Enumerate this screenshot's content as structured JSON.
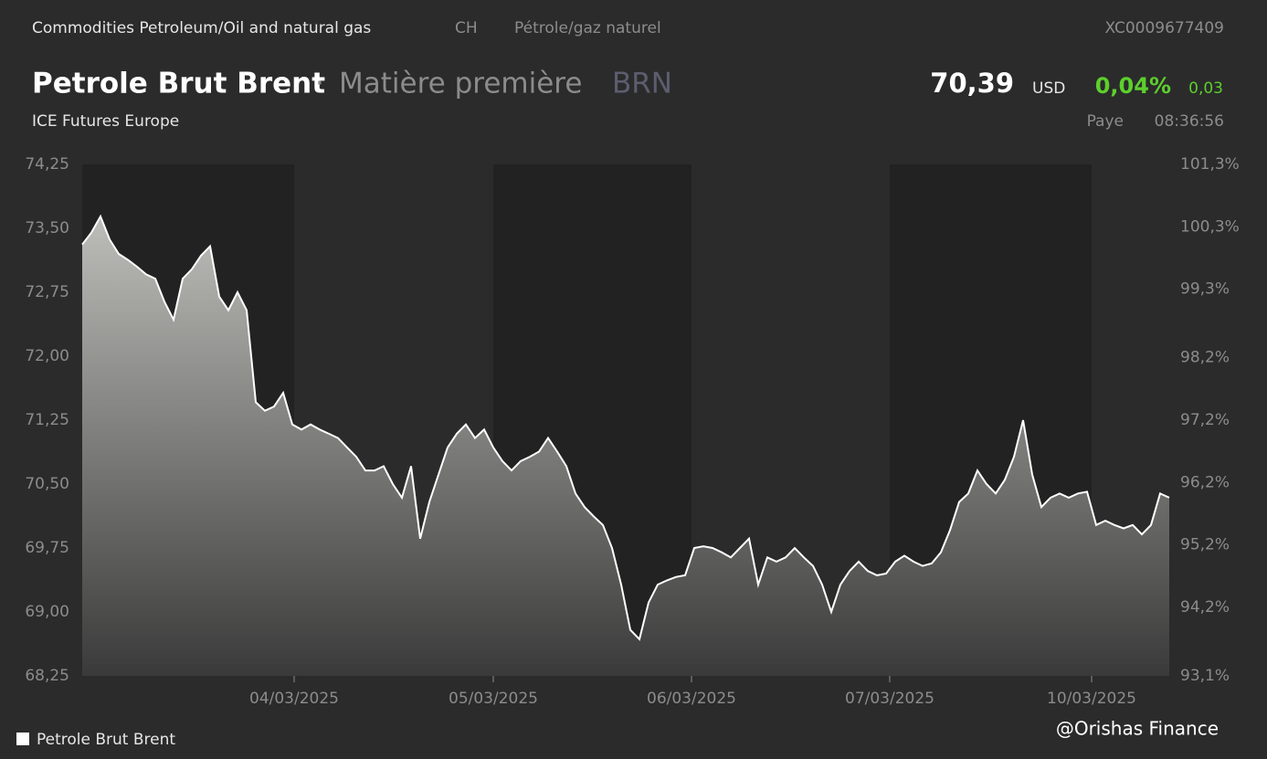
{
  "header": {
    "breadcrumb": "Commodities Petroleum/Oil and natural gas",
    "country": "CH",
    "category_fr": "Pétrole/gaz naturel",
    "isin": "XC0009677409",
    "name": "Petrole Brut Brent",
    "kind": "Matière première",
    "symbol": "BRN",
    "exchange": "ICE Futures Europe",
    "price": "70,39",
    "currency": "USD",
    "change_pct": "0,04%",
    "change_abs": "0,03",
    "status": "Paye",
    "time": "08:36:56",
    "watermark": "@Orishas Finance"
  },
  "chart_data": {
    "type": "area",
    "series": [
      {
        "name": "Petrole Brut Brent",
        "color": "#ffffff",
        "values": [
          73.31,
          73.45,
          73.64,
          73.37,
          73.2,
          73.13,
          73.05,
          72.96,
          72.91,
          72.64,
          72.43,
          72.91,
          73.02,
          73.18,
          73.29,
          72.7,
          72.54,
          72.75,
          72.54,
          71.46,
          71.36,
          71.41,
          71.57,
          71.2,
          71.14,
          71.2,
          71.14,
          71.09,
          71.04,
          70.93,
          70.82,
          70.66,
          70.66,
          70.71,
          70.5,
          70.34,
          70.71,
          69.86,
          70.29,
          70.61,
          70.93,
          71.09,
          71.2,
          71.04,
          71.14,
          70.93,
          70.77,
          70.66,
          70.77,
          70.82,
          70.88,
          71.04,
          70.88,
          70.71,
          70.39,
          70.23,
          70.12,
          70.02,
          69.75,
          69.32,
          68.79,
          68.68,
          69.11,
          69.32,
          69.37,
          69.41,
          69.43,
          69.75,
          69.77,
          69.75,
          69.7,
          69.64,
          69.75,
          69.86,
          69.32,
          69.64,
          69.59,
          69.64,
          69.75,
          69.64,
          69.54,
          69.32,
          69.0,
          69.32,
          69.48,
          69.59,
          69.48,
          69.43,
          69.45,
          69.59,
          69.66,
          69.59,
          69.54,
          69.57,
          69.7,
          69.96,
          70.29,
          70.39,
          70.66,
          70.5,
          70.39,
          70.55,
          70.82,
          71.25,
          70.61,
          70.23,
          70.34,
          70.39,
          70.34,
          70.39,
          70.41,
          70.02,
          70.07,
          70.02,
          69.98,
          70.02,
          69.91,
          70.02,
          70.39,
          70.34
        ]
      }
    ],
    "xlim": [
      0,
      119
    ],
    "xticks": [
      {
        "value": 23.2,
        "label": "04/03/2025"
      },
      {
        "value": 45,
        "label": "05/03/2025"
      },
      {
        "value": 66.7,
        "label": "06/03/2025"
      },
      {
        "value": 88.4,
        "label": "07/03/2025"
      },
      {
        "value": 110.5,
        "label": "10/03/2025"
      }
    ],
    "ylim": [
      68.25,
      74.25
    ],
    "yticks": [
      {
        "value": 68.25,
        "label": "68,25"
      },
      {
        "value": 69,
        "label": "69,00"
      },
      {
        "value": 69.75,
        "label": "69,75"
      },
      {
        "value": 70.5,
        "label": "70,50"
      },
      {
        "value": 71.25,
        "label": "71,25"
      },
      {
        "value": 72,
        "label": "72,00"
      },
      {
        "value": 72.75,
        "label": "72,75"
      },
      {
        "value": 73.5,
        "label": "73,50"
      },
      {
        "value": 74.25,
        "label": "74,25"
      }
    ],
    "y2lim": [
      93.1,
      101.3
    ],
    "y2ticks": [
      {
        "value": 93.1,
        "label": "93,1%"
      },
      {
        "value": 94.2,
        "label": "94,2%"
      },
      {
        "value": 95.2,
        "label": "95,2%"
      },
      {
        "value": 96.2,
        "label": "96,2%"
      },
      {
        "value": 97.2,
        "label": "97,2%"
      },
      {
        "value": 98.2,
        "label": "98,2%"
      },
      {
        "value": 99.3,
        "label": "99,3%"
      },
      {
        "value": 100.3,
        "label": "100,3%"
      },
      {
        "value": 101.3,
        "label": "101,3%"
      }
    ],
    "legend": "bottom-left"
  }
}
